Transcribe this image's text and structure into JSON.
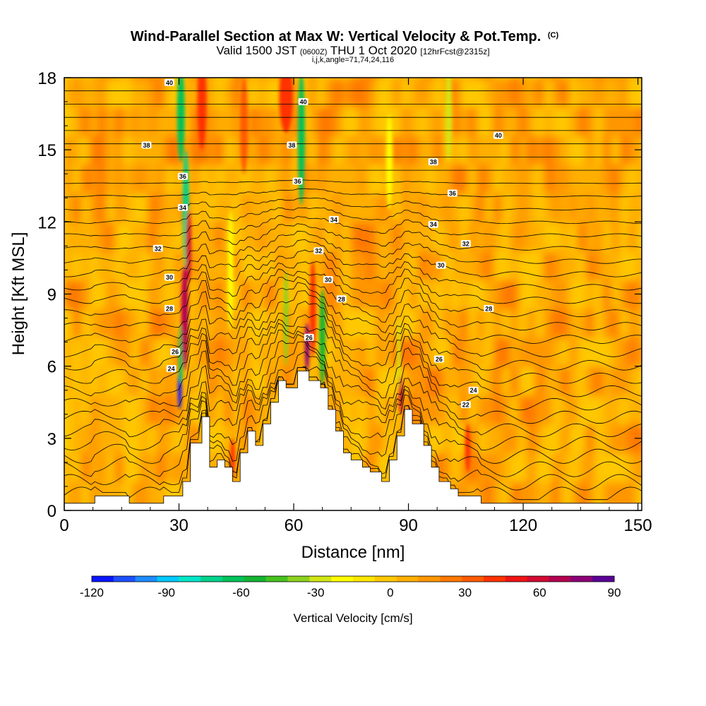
{
  "chart_data": {
    "type": "heatmap",
    "title": "Wind-Parallel Section at Max W: Vertical Velocity & Pot.Temp.",
    "title_mark": "(C)",
    "subtitle_main1": "Valid 1500 JST",
    "subtitle_small1": "(0600Z)",
    "subtitle_main2": "THU 1 Oct 2020",
    "subtitle_small2": "[12hrFcst@2315z]",
    "subtitle2": "i,j,k,angle=71,74,24,116",
    "xlabel": "Distance [nm]",
    "ylabel": "Height [Kft MSL]",
    "xlim": [
      0,
      151
    ],
    "ylim": [
      0,
      18
    ],
    "x_ticks": [
      0,
      30,
      60,
      90,
      120,
      150
    ],
    "y_ticks": [
      0,
      3,
      6,
      9,
      12,
      15,
      18
    ],
    "colorbar": {
      "label": "Vertical Velocity [cm/s]",
      "range": [
        -120,
        90
      ],
      "ticks": [
        -120,
        -90,
        -60,
        -30,
        0,
        30,
        60,
        90
      ],
      "colors": [
        "#0a14ff",
        "#1e50ff",
        "#1e8cff",
        "#00c8ff",
        "#00e6c8",
        "#00d28c",
        "#00c35a",
        "#14b432",
        "#46c31e",
        "#8cd21e",
        "#d2e614",
        "#ffff00",
        "#ffe600",
        "#ffc800",
        "#ffaf00",
        "#ff9600",
        "#ff7800",
        "#ff5a00",
        "#ff3200",
        "#f01414",
        "#d20a32",
        "#b40050",
        "#8c0078",
        "#5a0096"
      ]
    },
    "terrain": [
      [
        0,
        0.3
      ],
      [
        8,
        0.3
      ],
      [
        8,
        0.6
      ],
      [
        17,
        0.6
      ],
      [
        17,
        0.3
      ],
      [
        26,
        0.3
      ],
      [
        26,
        0.6
      ],
      [
        31,
        0.6
      ],
      [
        31,
        1.2
      ],
      [
        33,
        1.2
      ],
      [
        33,
        2.8
      ],
      [
        36,
        2.8
      ],
      [
        36,
        3.9
      ],
      [
        38,
        3.9
      ],
      [
        38,
        1.8
      ],
      [
        40,
        1.8
      ],
      [
        40,
        2.1
      ],
      [
        42,
        2.1
      ],
      [
        42,
        1.8
      ],
      [
        44,
        1.8
      ],
      [
        44,
        1.2
      ],
      [
        46,
        1.2
      ],
      [
        46,
        2.4
      ],
      [
        48,
        2.4
      ],
      [
        48,
        3.3
      ],
      [
        50,
        3.3
      ],
      [
        50,
        2.7
      ],
      [
        52,
        2.7
      ],
      [
        52,
        3.6
      ],
      [
        54,
        3.6
      ],
      [
        54,
        4.5
      ],
      [
        56,
        4.5
      ],
      [
        56,
        5.4
      ],
      [
        58,
        5.4
      ],
      [
        58,
        5.1
      ],
      [
        61,
        5.1
      ],
      [
        61,
        5.8
      ],
      [
        63,
        5.8
      ],
      [
        63,
        5.8
      ],
      [
        64,
        5.8
      ],
      [
        64,
        5.4
      ],
      [
        67,
        5.4
      ],
      [
        67,
        5.1
      ],
      [
        69,
        5.1
      ],
      [
        69,
        4.2
      ],
      [
        71,
        4.2
      ],
      [
        71,
        3.3
      ],
      [
        73,
        3.3
      ],
      [
        73,
        2.4
      ],
      [
        75,
        2.4
      ],
      [
        75,
        2.1
      ],
      [
        78,
        2.1
      ],
      [
        78,
        1.8
      ],
      [
        80,
        1.8
      ],
      [
        80,
        1.6
      ],
      [
        83,
        1.6
      ],
      [
        83,
        1.2
      ],
      [
        85,
        1.2
      ],
      [
        85,
        2.1
      ],
      [
        87,
        2.1
      ],
      [
        87,
        3.1
      ],
      [
        89,
        3.1
      ],
      [
        89,
        4.2
      ],
      [
        91,
        4.2
      ],
      [
        91,
        3.6
      ],
      [
        94,
        3.6
      ],
      [
        94,
        2.7
      ],
      [
        96,
        2.7
      ],
      [
        96,
        1.8
      ],
      [
        98,
        1.8
      ],
      [
        98,
        1.2
      ],
      [
        101,
        1.2
      ],
      [
        101,
        0.9
      ],
      [
        103,
        0.9
      ],
      [
        103,
        0.6
      ],
      [
        109,
        0.6
      ],
      [
        109,
        0.3
      ],
      [
        151,
        0.3
      ]
    ],
    "theta_levels": [
      22,
      24,
      26,
      28,
      30,
      32,
      34,
      36,
      38,
      40
    ],
    "contour_labels": [
      {
        "x": 27.5,
        "y": 17.8,
        "text": "40"
      },
      {
        "x": 62.5,
        "y": 17.0,
        "text": "40"
      },
      {
        "x": 113.5,
        "y": 15.6,
        "text": "40"
      },
      {
        "x": 21.5,
        "y": 15.2,
        "text": "38"
      },
      {
        "x": 59.5,
        "y": 15.2,
        "text": "38"
      },
      {
        "x": 96.5,
        "y": 14.5,
        "text": "38"
      },
      {
        "x": 31.0,
        "y": 13.9,
        "text": "36"
      },
      {
        "x": 61.0,
        "y": 13.7,
        "text": "36"
      },
      {
        "x": 101.5,
        "y": 13.2,
        "text": "36"
      },
      {
        "x": 31.0,
        "y": 12.6,
        "text": "34"
      },
      {
        "x": 70.5,
        "y": 12.1,
        "text": "34"
      },
      {
        "x": 96.5,
        "y": 11.9,
        "text": "34"
      },
      {
        "x": 24.5,
        "y": 10.9,
        "text": "32"
      },
      {
        "x": 66.5,
        "y": 10.8,
        "text": "32"
      },
      {
        "x": 105.0,
        "y": 11.1,
        "text": "32"
      },
      {
        "x": 27.5,
        "y": 9.7,
        "text": "30"
      },
      {
        "x": 69.0,
        "y": 9.6,
        "text": "30"
      },
      {
        "x": 98.5,
        "y": 10.2,
        "text": "30"
      },
      {
        "x": 27.5,
        "y": 8.4,
        "text": "28"
      },
      {
        "x": 72.5,
        "y": 8.8,
        "text": "28"
      },
      {
        "x": 111.0,
        "y": 8.4,
        "text": "28"
      },
      {
        "x": 29.0,
        "y": 6.6,
        "text": "26"
      },
      {
        "x": 64.0,
        "y": 7.2,
        "text": "26"
      },
      {
        "x": 98.0,
        "y": 6.3,
        "text": "26"
      },
      {
        "x": 28.0,
        "y": 5.9,
        "text": "24"
      },
      {
        "x": 107.0,
        "y": 5.0,
        "text": "24"
      },
      {
        "x": 105.0,
        "y": 4.4,
        "text": "22"
      }
    ],
    "updrafts": [
      {
        "x": 31.5,
        "y": 8.0,
        "w": 0.9,
        "h": 2.2,
        "v": 65
      },
      {
        "x": 32.5,
        "y": 11.0,
        "w": 0.7,
        "h": 1.5,
        "v": 55
      },
      {
        "x": 63.5,
        "y": 6.8,
        "w": 0.6,
        "h": 1.0,
        "v": 75
      },
      {
        "x": 88.0,
        "y": 4.8,
        "w": 0.5,
        "h": 0.8,
        "v": 55
      },
      {
        "x": 65.0,
        "y": 8.4,
        "w": 0.8,
        "h": 2.0,
        "v": 40
      },
      {
        "x": 58.0,
        "y": 17.2,
        "w": 1.8,
        "h": 1.5,
        "v": 45
      },
      {
        "x": 44.0,
        "y": 2.2,
        "w": 0.6,
        "h": 0.8,
        "v": 45
      },
      {
        "x": 36.0,
        "y": 17.0,
        "w": 1.2,
        "h": 2.0,
        "v": 40
      },
      {
        "x": 105.5,
        "y": 2.6,
        "w": 0.7,
        "h": 1.0,
        "v": 40
      },
      {
        "x": 47.0,
        "y": 16.0,
        "w": 1.0,
        "h": 2.0,
        "v": 35
      }
    ],
    "downdrafts": [
      {
        "x": 30.2,
        "y": 5.0,
        "w": 0.5,
        "h": 0.8,
        "v": -115
      },
      {
        "x": 30.5,
        "y": 6.5,
        "w": 0.6,
        "h": 1.2,
        "v": -60
      },
      {
        "x": 31.8,
        "y": 12.5,
        "w": 0.8,
        "h": 2.5,
        "v": -75
      },
      {
        "x": 30.5,
        "y": 16.5,
        "w": 1.0,
        "h": 2.0,
        "v": -60
      },
      {
        "x": 62.0,
        "y": 15.5,
        "w": 0.9,
        "h": 2.8,
        "v": -65
      },
      {
        "x": 67.5,
        "y": 7.2,
        "w": 0.8,
        "h": 2.0,
        "v": -55
      },
      {
        "x": 58.0,
        "y": 8.0,
        "w": 0.6,
        "h": 2.0,
        "v": -40
      },
      {
        "x": 87.5,
        "y": 6.5,
        "w": 0.5,
        "h": 1.5,
        "v": -30
      },
      {
        "x": 100.5,
        "y": 16.5,
        "w": 0.8,
        "h": 2.0,
        "v": -25
      },
      {
        "x": 43.5,
        "y": 10.0,
        "w": 0.7,
        "h": 2.5,
        "v": -20
      },
      {
        "x": 85.0,
        "y": 14.5,
        "w": 0.8,
        "h": 2.0,
        "v": -20
      }
    ]
  }
}
